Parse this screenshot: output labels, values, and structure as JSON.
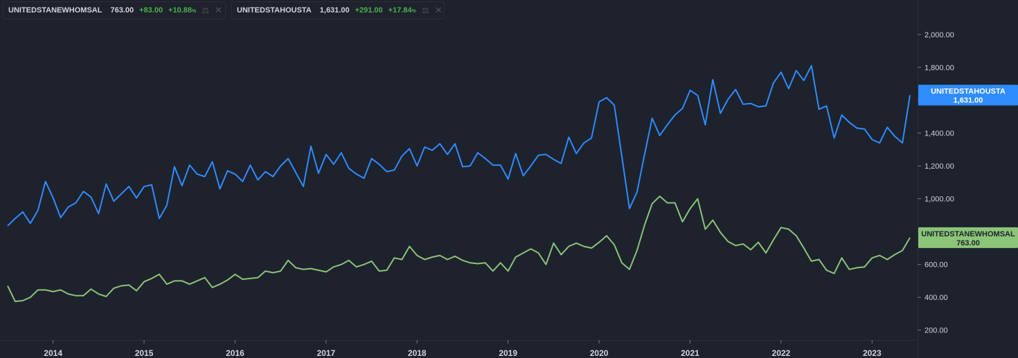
{
  "legend": [
    {
      "name": "UNITEDSTANEWHOMSAL",
      "value": "763.00",
      "change": "+83.00",
      "change_pct": "+10.88",
      "pct_suffix": "%",
      "color": "#8bc578",
      "icon": "weight-icon",
      "close_icon": "close-icon"
    },
    {
      "name": "UNITEDSTAHOUSTA",
      "value": "1,631.00",
      "change": "+291.00",
      "change_pct": "+17.84",
      "pct_suffix": "%",
      "color": "#2f8cff",
      "icon": "weight-icon",
      "close_icon": "close-icon"
    }
  ],
  "price_tags": [
    {
      "name": "UNITEDSTAHOUSTA",
      "value": "1,631.00",
      "bg": "#2f8cff",
      "fg": "#ffffff"
    },
    {
      "name": "UNITEDSTANEWHOMSAL",
      "value": "763.00",
      "bg": "#8bc578",
      "fg": "#1e222d"
    }
  ],
  "chart_data": {
    "type": "line",
    "background": "#1e222d",
    "grid": false,
    "x_ticks": [
      "2014",
      "2015",
      "2016",
      "2017",
      "2018",
      "2019",
      "2020",
      "2021",
      "2022",
      "2023"
    ],
    "y_ticks": [
      "200.00",
      "400.00",
      "600.00",
      "800.00",
      "1,000.00",
      "1,200.00",
      "1,400.00",
      "1,600.00",
      "1,800.00",
      "2,000.00"
    ],
    "ylim": [
      140,
      2210
    ],
    "xlim": [
      "2013-06-01",
      "2023-07-01"
    ],
    "x_start": "2013-07-01",
    "x_step": "monthly",
    "series": [
      {
        "name": "UNITEDSTAHOUSTA",
        "color": "#2f8cff",
        "values": [
          835,
          880,
          920,
          850,
          930,
          1105,
          1005,
          885,
          950,
          975,
          1045,
          1010,
          910,
          1090,
          985,
          1030,
          1075,
          1005,
          1075,
          1085,
          880,
          960,
          1195,
          1080,
          1205,
          1150,
          1135,
          1225,
          1060,
          1170,
          1150,
          1105,
          1205,
          1115,
          1165,
          1135,
          1200,
          1245,
          1160,
          1075,
          1320,
          1155,
          1270,
          1210,
          1280,
          1185,
          1150,
          1125,
          1245,
          1210,
          1165,
          1175,
          1260,
          1305,
          1200,
          1315,
          1295,
          1335,
          1270,
          1335,
          1195,
          1200,
          1280,
          1245,
          1205,
          1205,
          1120,
          1275,
          1140,
          1200,
          1265,
          1270,
          1240,
          1215,
          1375,
          1275,
          1340,
          1370,
          1590,
          1615,
          1570,
          1260,
          940,
          1040,
          1270,
          1490,
          1385,
          1450,
          1510,
          1550,
          1660,
          1630,
          1450,
          1725,
          1520,
          1605,
          1665,
          1575,
          1580,
          1560,
          1565,
          1705,
          1770,
          1670,
          1780,
          1720,
          1810,
          1545,
          1565,
          1370,
          1510,
          1465,
          1430,
          1425,
          1360,
          1340,
          1435,
          1380,
          1340,
          1631
        ]
      },
      {
        "name": "UNITEDSTANEWHOMSAL",
        "color": "#8bc578",
        "values": [
          470,
          375,
          380,
          400,
          445,
          445,
          435,
          445,
          420,
          410,
          410,
          450,
          420,
          405,
          455,
          470,
          475,
          440,
          495,
          515,
          540,
          480,
          500,
          500,
          480,
          500,
          520,
          460,
          480,
          505,
          540,
          510,
          515,
          520,
          560,
          550,
          560,
          625,
          580,
          570,
          575,
          565,
          555,
          585,
          600,
          625,
          585,
          600,
          620,
          560,
          565,
          640,
          630,
          710,
          655,
          630,
          645,
          655,
          630,
          650,
          625,
          610,
          605,
          610,
          560,
          610,
          560,
          645,
          670,
          695,
          670,
          600,
          730,
          660,
          710,
          730,
          710,
          700,
          735,
          775,
          720,
          610,
          570,
          685,
          840,
          970,
          1015,
          975,
          975,
          860,
          940,
          1000,
          815,
          870,
          795,
          740,
          715,
          725,
          690,
          735,
          670,
          750,
          825,
          815,
          775,
          700,
          620,
          630,
          565,
          545,
          640,
          570,
          580,
          585,
          640,
          655,
          630,
          660,
          685,
          763
        ]
      }
    ]
  }
}
